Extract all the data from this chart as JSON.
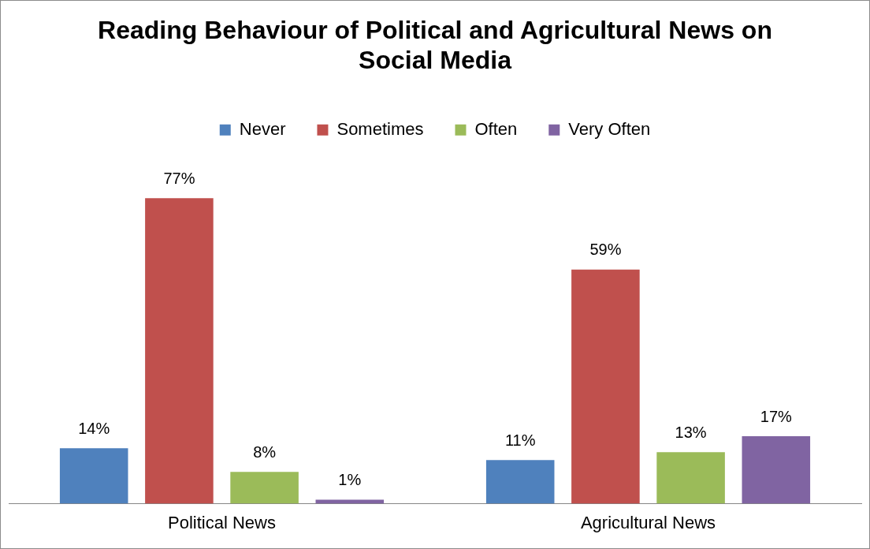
{
  "chart_data": {
    "type": "bar",
    "title": "Reading Behaviour of Political and Agricultural News on Social Media",
    "categories": [
      "Political News",
      "Agricultural News"
    ],
    "series": [
      {
        "name": "Never",
        "color": "#4f81bd",
        "values": [
          14,
          11
        ],
        "value_labels": [
          "14%",
          "11%"
        ]
      },
      {
        "name": "Sometimes",
        "color": "#c0504d",
        "values": [
          77,
          59
        ],
        "value_labels": [
          "77%",
          "59%"
        ]
      },
      {
        "name": "Often",
        "color": "#9bbb59",
        "values": [
          8,
          13
        ],
        "value_labels": [
          "8%",
          "13%"
        ]
      },
      {
        "name": "Very Often",
        "color": "#8064a2",
        "values": [
          1,
          17
        ],
        "value_labels": [
          "1%",
          "17%"
        ]
      }
    ],
    "legend": "top",
    "grid": false,
    "tick_labels": "x"
  }
}
